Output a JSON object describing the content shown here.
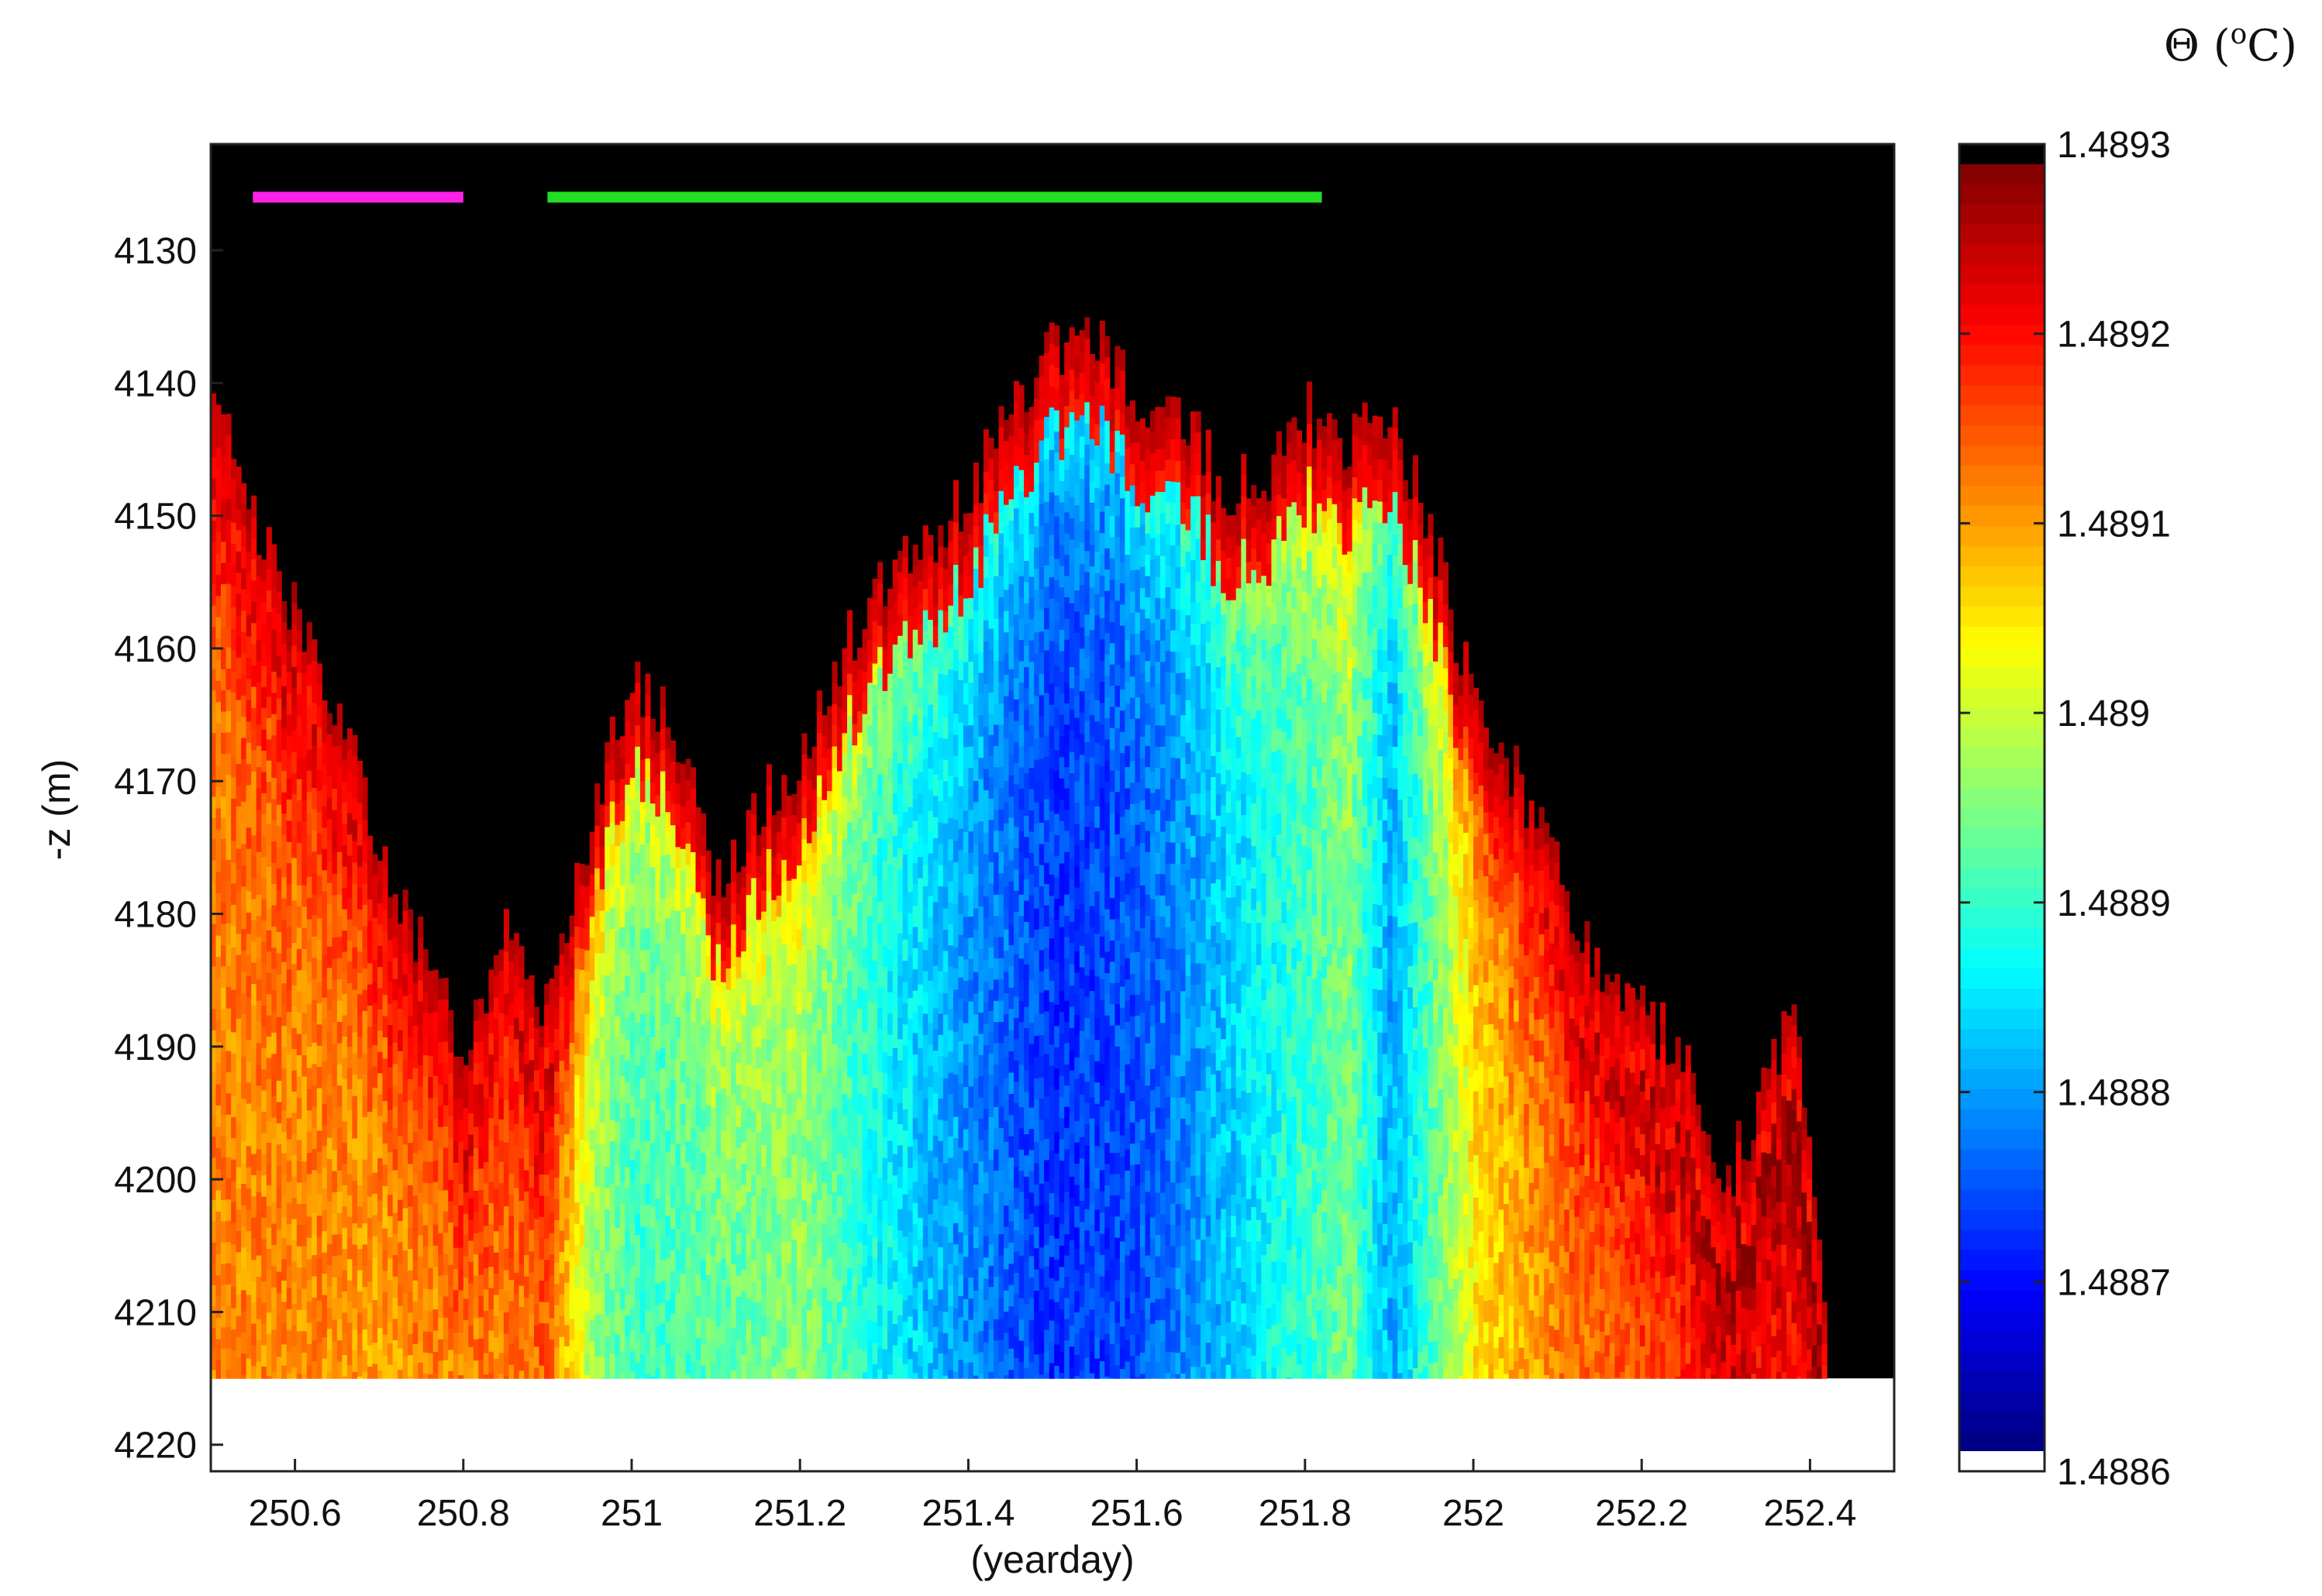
{
  "chart_data": {
    "type": "heatmap",
    "xlabel": "(yearday)",
    "ylabel": "-z (m)",
    "xlim": [
      250.5,
      252.5
    ],
    "ylim": [
      4122,
      4222
    ],
    "y_reversed": true,
    "x_ticks": [
      "250.6",
      "250.8",
      "251",
      "251.2",
      "251.4",
      "251.6",
      "251.8",
      "252",
      "252.2",
      "252.4"
    ],
    "x_tick_values": [
      250.6,
      250.8,
      251.0,
      251.2,
      251.4,
      251.6,
      251.8,
      252.0,
      252.2,
      252.4
    ],
    "y_ticks": [
      "4130",
      "4140",
      "4150",
      "4160",
      "4170",
      "4180",
      "4190",
      "4200",
      "4210",
      "4220"
    ],
    "y_tick_values": [
      4130,
      4140,
      4150,
      4160,
      4170,
      4180,
      4190,
      4200,
      4210,
      4220
    ],
    "colorbar": {
      "title_symbol": "Θ",
      "title_open": " (",
      "title_sup": "o",
      "title_unit": "C)",
      "range": [
        1.4886,
        1.4893
      ],
      "colormap": "jet",
      "ticks": [
        "1.4893",
        "1.4892",
        "1.4891",
        "1.489",
        "1.4889",
        "1.4888",
        "1.4887",
        "1.4886"
      ],
      "tick_values": [
        1.4893,
        1.4892,
        1.4891,
        1.489,
        1.4889,
        1.4888,
        1.4887,
        1.4886
      ],
      "above_color": "#000000",
      "below_color": "#ffffff"
    },
    "data_bottom_depth": 4215,
    "background_color": "#000000",
    "boundary": [
      {
        "t": 250.5,
        "z": 4140
      },
      {
        "t": 250.55,
        "z": 4150
      },
      {
        "t": 250.6,
        "z": 4158
      },
      {
        "t": 250.65,
        "z": 4165
      },
      {
        "t": 250.7,
        "z": 4175
      },
      {
        "t": 250.75,
        "z": 4183
      },
      {
        "t": 250.8,
        "z": 4190
      },
      {
        "t": 250.85,
        "z": 4180
      },
      {
        "t": 250.9,
        "z": 4188
      },
      {
        "t": 250.95,
        "z": 4172
      },
      {
        "t": 251.0,
        "z": 4162
      },
      {
        "t": 251.05,
        "z": 4166
      },
      {
        "t": 251.1,
        "z": 4178
      },
      {
        "t": 251.15,
        "z": 4172
      },
      {
        "t": 251.2,
        "z": 4168
      },
      {
        "t": 251.25,
        "z": 4160
      },
      {
        "t": 251.3,
        "z": 4155
      },
      {
        "t": 251.35,
        "z": 4152
      },
      {
        "t": 251.4,
        "z": 4148
      },
      {
        "t": 251.45,
        "z": 4142
      },
      {
        "t": 251.5,
        "z": 4137
      },
      {
        "t": 251.55,
        "z": 4137
      },
      {
        "t": 251.6,
        "z": 4141
      },
      {
        "t": 251.65,
        "z": 4142
      },
      {
        "t": 251.7,
        "z": 4148
      },
      {
        "t": 251.75,
        "z": 4147
      },
      {
        "t": 251.8,
        "z": 4142
      },
      {
        "t": 251.85,
        "z": 4145
      },
      {
        "t": 251.9,
        "z": 4142
      },
      {
        "t": 251.95,
        "z": 4152
      },
      {
        "t": 252.0,
        "z": 4165
      },
      {
        "t": 252.05,
        "z": 4170
      },
      {
        "t": 252.1,
        "z": 4177
      },
      {
        "t": 252.15,
        "z": 4185
      },
      {
        "t": 252.2,
        "z": 4188
      },
      {
        "t": 252.25,
        "z": 4190
      },
      {
        "t": 252.3,
        "z": 4200
      },
      {
        "t": 252.35,
        "z": 4192
      },
      {
        "t": 252.38,
        "z": 4185
      },
      {
        "t": 252.4,
        "z": 4200
      },
      {
        "t": 252.42,
        "z": 4215
      }
    ],
    "core_temperature": [
      {
        "t": 250.5,
        "v": 1.48912
      },
      {
        "t": 250.6,
        "v": 1.48912
      },
      {
        "t": 250.7,
        "v": 1.4891
      },
      {
        "t": 250.8,
        "v": 1.48911
      },
      {
        "t": 250.9,
        "v": 1.48913
      },
      {
        "t": 250.95,
        "v": 1.48897
      },
      {
        "t": 251.0,
        "v": 1.4889
      },
      {
        "t": 251.1,
        "v": 1.48892
      },
      {
        "t": 251.2,
        "v": 1.48895
      },
      {
        "t": 251.3,
        "v": 1.48886
      },
      {
        "t": 251.4,
        "v": 1.48878
      },
      {
        "t": 251.5,
        "v": 1.48872
      },
      {
        "t": 251.6,
        "v": 1.48874
      },
      {
        "t": 251.7,
        "v": 1.48882
      },
      {
        "t": 251.8,
        "v": 1.4889
      },
      {
        "t": 251.85,
        "v": 1.48894
      },
      {
        "t": 251.9,
        "v": 1.4888
      },
      {
        "t": 252.0,
        "v": 1.48905
      },
      {
        "t": 252.1,
        "v": 1.48912
      },
      {
        "t": 252.2,
        "v": 1.48915
      },
      {
        "t": 252.3,
        "v": 1.48918
      },
      {
        "t": 252.42,
        "v": 1.4892
      }
    ],
    "annotations": [
      {
        "type": "bar",
        "color": "#ff22e6",
        "t_start": 250.55,
        "t_end": 250.8,
        "z": 4126
      },
      {
        "type": "bar",
        "color": "#22dd22",
        "t_start": 250.9,
        "t_end": 251.82,
        "z": 4126
      }
    ]
  }
}
